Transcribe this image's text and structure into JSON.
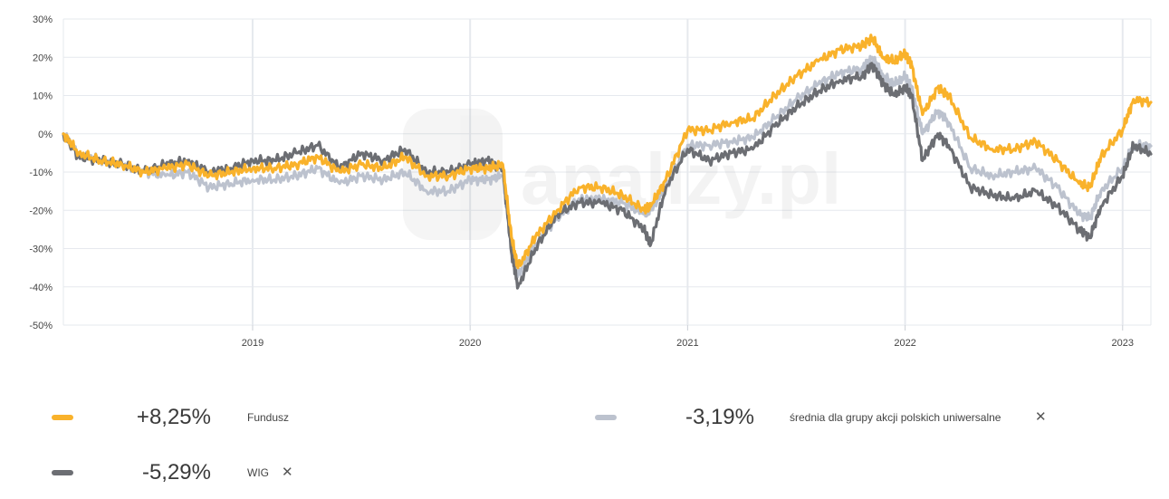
{
  "chart_data": {
    "type": "line",
    "ylim": [
      -50,
      30
    ],
    "y_ticks": [
      "30%",
      "20%",
      "10%",
      "0%",
      "-10%",
      "-20%",
      "-30%",
      "-40%",
      "-50%"
    ],
    "y_tick_values": [
      30,
      20,
      10,
      0,
      -10,
      -20,
      -30,
      -40,
      -50
    ],
    "xlim": [
      2018.13,
      2023.13
    ],
    "x_ticks": [
      "2019",
      "2020",
      "2021",
      "2022",
      "2023"
    ],
    "x_tick_values": [
      2019.0,
      2020.0,
      2021.0,
      2022.0,
      2023.0
    ],
    "grid": true,
    "watermark": "analizy.pl",
    "series": [
      {
        "name": "Fundusz",
        "color": "#F9B22B",
        "x": [
          2018.13,
          2018.2,
          2018.3,
          2018.4,
          2018.5,
          2018.6,
          2018.7,
          2018.8,
          2018.9,
          2019.0,
          2019.1,
          2019.2,
          2019.3,
          2019.4,
          2019.5,
          2019.6,
          2019.7,
          2019.8,
          2019.9,
          2020.0,
          2020.08,
          2020.15,
          2020.19,
          2020.22,
          2020.3,
          2020.4,
          2020.5,
          2020.6,
          2020.7,
          2020.8,
          2020.83,
          2020.9,
          2021.0,
          2021.1,
          2021.2,
          2021.3,
          2021.4,
          2021.5,
          2021.6,
          2021.7,
          2021.8,
          2021.85,
          2021.9,
          2021.95,
          2022.0,
          2022.03,
          2022.08,
          2022.15,
          2022.2,
          2022.3,
          2022.4,
          2022.5,
          2022.6,
          2022.7,
          2022.8,
          2022.85,
          2022.9,
          2023.0,
          2023.05,
          2023.13
        ],
        "y": [
          0,
          -5,
          -7,
          -8,
          -10,
          -9,
          -8,
          -11,
          -10,
          -9,
          -9,
          -8,
          -6,
          -10,
          -8,
          -9,
          -6,
          -11,
          -11,
          -9,
          -9,
          -8,
          -27,
          -35,
          -27,
          -20,
          -14,
          -14,
          -16,
          -20,
          -19,
          -12,
          1,
          1,
          3,
          4,
          10,
          15,
          19,
          22,
          23,
          25,
          20,
          19,
          21,
          18,
          5,
          12,
          10,
          -1,
          -4,
          -4,
          -2,
          -7,
          -13,
          -14,
          -6,
          1,
          9,
          8.25
        ]
      },
      {
        "name": "średnia dla grupy akcji polskich uniwersalne",
        "color": "#BCC2CE",
        "x": [
          2018.13,
          2018.2,
          2018.3,
          2018.4,
          2018.5,
          2018.6,
          2018.7,
          2018.8,
          2018.9,
          2019.0,
          2019.1,
          2019.2,
          2019.3,
          2019.4,
          2019.5,
          2019.6,
          2019.7,
          2019.8,
          2019.9,
          2020.0,
          2020.08,
          2020.15,
          2020.19,
          2020.22,
          2020.3,
          2020.4,
          2020.5,
          2020.6,
          2020.7,
          2020.8,
          2020.83,
          2020.9,
          2021.0,
          2021.1,
          2021.2,
          2021.3,
          2021.4,
          2021.5,
          2021.6,
          2021.7,
          2021.8,
          2021.85,
          2021.9,
          2021.95,
          2022.0,
          2022.03,
          2022.08,
          2022.15,
          2022.2,
          2022.3,
          2022.4,
          2022.5,
          2022.6,
          2022.7,
          2022.8,
          2022.85,
          2022.9,
          2023.0,
          2023.05,
          2023.13
        ],
        "y": [
          0,
          -5,
          -7,
          -8,
          -10,
          -11,
          -10,
          -14,
          -13,
          -12,
          -12,
          -11,
          -9,
          -13,
          -11,
          -12,
          -10,
          -15,
          -15,
          -12,
          -12,
          -11,
          -30,
          -37,
          -29,
          -22,
          -17,
          -17,
          -18,
          -21,
          -20,
          -14,
          -3,
          -3,
          -2,
          -1,
          4,
          9,
          13,
          16,
          17,
          20,
          15,
          13,
          15,
          12,
          0,
          6,
          3,
          -9,
          -11,
          -10,
          -9,
          -14,
          -21,
          -22,
          -15,
          -9,
          -3,
          -3.19
        ]
      },
      {
        "name": "WIG",
        "color": "#6C6E73",
        "x": [
          2018.13,
          2018.2,
          2018.3,
          2018.4,
          2018.5,
          2018.6,
          2018.7,
          2018.8,
          2018.9,
          2019.0,
          2019.1,
          2019.2,
          2019.3,
          2019.4,
          2019.5,
          2019.6,
          2019.7,
          2019.8,
          2019.9,
          2020.0,
          2020.08,
          2020.15,
          2020.19,
          2020.22,
          2020.3,
          2020.4,
          2020.5,
          2020.6,
          2020.7,
          2020.8,
          2020.83,
          2020.9,
          2021.0,
          2021.1,
          2021.2,
          2021.3,
          2021.4,
          2021.5,
          2021.6,
          2021.7,
          2021.8,
          2021.85,
          2021.9,
          2021.95,
          2022.0,
          2022.03,
          2022.08,
          2022.15,
          2022.2,
          2022.3,
          2022.4,
          2022.5,
          2022.6,
          2022.7,
          2022.8,
          2022.85,
          2022.9,
          2023.0,
          2023.05,
          2023.13
        ],
        "y": [
          0,
          -6,
          -7,
          -8,
          -10,
          -8,
          -7,
          -10,
          -9,
          -7,
          -7,
          -5,
          -3,
          -9,
          -5,
          -7,
          -4,
          -10,
          -10,
          -8,
          -7,
          -9,
          -31,
          -40,
          -30,
          -21,
          -18,
          -18,
          -20,
          -25,
          -29,
          -14,
          -4,
          -7,
          -5,
          -4,
          2,
          7,
          11,
          14,
          15,
          18,
          13,
          10,
          12,
          10,
          -7,
          0,
          -3,
          -14,
          -16,
          -17,
          -15,
          -19,
          -25,
          -27,
          -19,
          -11,
          -3,
          -5.29
        ]
      }
    ]
  },
  "legend": [
    {
      "name": "Fundusz",
      "value": "+8,25%",
      "color": "#F9B22B",
      "removable": false
    },
    {
      "name": "średnia dla grupy akcji polskich uniwersalne",
      "value": "-3,19%",
      "color": "#BCC2CE",
      "removable": true
    },
    {
      "name": "WIG",
      "value": "-5,29%",
      "color": "#6C6E73",
      "removable": true
    }
  ],
  "legend_close_glyph": "✕"
}
